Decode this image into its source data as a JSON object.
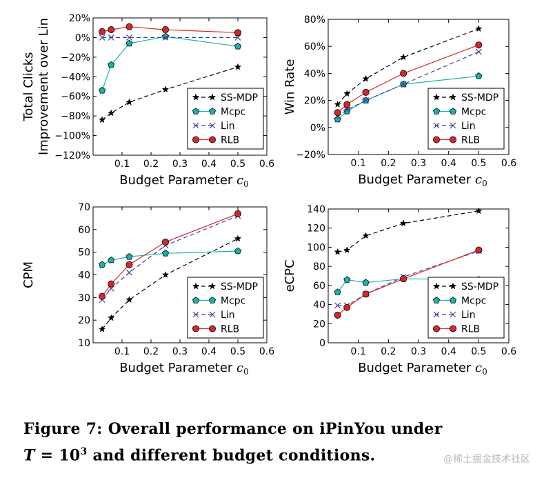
{
  "chart_data": [
    {
      "type": "line",
      "ylabel": [
        "Total Clicks",
        "Improvement over Lin"
      ],
      "xlabel": "Budget Parameter",
      "xlabel_symbol": "c",
      "xlabel_sub": "0",
      "xlim": [
        0,
        0.6
      ],
      "ylim": [
        -120,
        20
      ],
      "xticks": [
        0.1,
        0.2,
        0.3,
        0.4,
        0.5,
        0.6
      ],
      "yticks": [
        -120,
        -100,
        -80,
        -60,
        -40,
        -20,
        0,
        20
      ],
      "ytick_labels": [
        "−120%",
        "−100%",
        "−80%",
        "−60%",
        "−40%",
        "−20%",
        "0%",
        "20%"
      ],
      "x": [
        0.03125,
        0.0625,
        0.125,
        0.25,
        0.5
      ],
      "grid": false,
      "legend_position": "lower-right",
      "series": [
        {
          "name": "SS-MDP",
          "values": [
            -84,
            -77,
            -66,
            -53,
            -30
          ]
        },
        {
          "name": "Mcpc",
          "values": [
            -54,
            -28,
            -6,
            1,
            -9
          ]
        },
        {
          "name": "Lin",
          "values": [
            0,
            0,
            0,
            0,
            0
          ]
        },
        {
          "name": "RLB",
          "values": [
            6,
            8,
            11,
            8,
            5
          ]
        }
      ]
    },
    {
      "type": "line",
      "ylabel": [
        "Win Rate"
      ],
      "xlabel": "Budget Parameter",
      "xlabel_symbol": "c",
      "xlabel_sub": "0",
      "xlim": [
        0,
        0.6
      ],
      "ylim": [
        -20,
        80
      ],
      "xticks": [
        0.1,
        0.2,
        0.3,
        0.4,
        0.5,
        0.6
      ],
      "yticks": [
        -20,
        0,
        20,
        40,
        60,
        80
      ],
      "ytick_labels": [
        "−20%",
        "0%",
        "20%",
        "40%",
        "60%",
        "80%"
      ],
      "x": [
        0.03125,
        0.0625,
        0.125,
        0.25,
        0.5
      ],
      "grid": false,
      "legend_position": "lower-right",
      "series": [
        {
          "name": "SS-MDP",
          "values": [
            17,
            25,
            36,
            52,
            73
          ]
        },
        {
          "name": "Mcpc",
          "values": [
            6,
            12,
            20,
            32,
            38
          ]
        },
        {
          "name": "Lin",
          "values": [
            8,
            13,
            20,
            32,
            56
          ]
        },
        {
          "name": "RLB",
          "values": [
            11,
            17,
            26,
            40,
            61
          ]
        }
      ]
    },
    {
      "type": "line",
      "ylabel": [
        "CPM"
      ],
      "xlabel": "Budget Parameter",
      "xlabel_symbol": "c",
      "xlabel_sub": "0",
      "xlim": [
        0,
        0.6
      ],
      "ylim": [
        10,
        70
      ],
      "xticks": [
        0.1,
        0.2,
        0.3,
        0.4,
        0.5,
        0.6
      ],
      "yticks": [
        10,
        20,
        30,
        40,
        50,
        60,
        70
      ],
      "ytick_labels": [
        "10",
        "20",
        "30",
        "40",
        "50",
        "60",
        "70"
      ],
      "x": [
        0.03125,
        0.0625,
        0.125,
        0.25,
        0.5
      ],
      "grid": false,
      "legend_position": "lower-right",
      "series": [
        {
          "name": "SS-MDP",
          "values": [
            16,
            21,
            29,
            40,
            56
          ]
        },
        {
          "name": "Mcpc",
          "values": [
            44.5,
            46.5,
            48,
            49.5,
            50.5
          ]
        },
        {
          "name": "Lin",
          "values": [
            29,
            34,
            41,
            53,
            66
          ]
        },
        {
          "name": "RLB",
          "values": [
            30.5,
            36,
            44.5,
            54.5,
            67
          ]
        }
      ]
    },
    {
      "type": "line",
      "ylabel": [
        "eCPC"
      ],
      "xlabel": "Budget Parameter",
      "xlabel_symbol": "c",
      "xlabel_sub": "0",
      "xlim": [
        0,
        0.6
      ],
      "ylim": [
        0,
        140
      ],
      "xticks": [
        0.1,
        0.2,
        0.3,
        0.4,
        0.5,
        0.6
      ],
      "yticks": [
        0,
        20,
        40,
        60,
        80,
        100,
        120,
        140
      ],
      "ytick_labels": [
        "0",
        "20",
        "40",
        "60",
        "80",
        "100",
        "120",
        "140"
      ],
      "x": [
        0.03125,
        0.0625,
        0.125,
        0.25,
        0.5
      ],
      "grid": false,
      "legend_position": "lower-right",
      "series": [
        {
          "name": "SS-MDP",
          "values": [
            95,
            97,
            112,
            125,
            138
          ]
        },
        {
          "name": "Mcpc",
          "values": [
            53,
            66,
            63,
            67,
            66
          ]
        },
        {
          "name": "Lin",
          "values": [
            39,
            39,
            51,
            69,
            96
          ]
        },
        {
          "name": "RLB",
          "values": [
            29,
            37,
            51,
            67,
            97
          ]
        }
      ]
    }
  ],
  "styles": {
    "SS-MDP": {
      "color": "#000000",
      "marker": "star",
      "dash": true
    },
    "Mcpc": {
      "color": "#1ab2aa",
      "marker": "pentagon",
      "dash": false
    },
    "Lin": {
      "color": "#3f3f9c",
      "marker": "x",
      "dash": true
    },
    "RLB": {
      "color": "#d62728",
      "marker": "circle",
      "dash": false
    }
  },
  "caption": {
    "line1": "Figure 7:  Overall performance on iPinYou under",
    "t_symbol": "T",
    "equals_base": " = 10",
    "exponent": "3",
    "line2_rest": " and different budget conditions."
  },
  "watermark": "@稀土掘金技术社区"
}
